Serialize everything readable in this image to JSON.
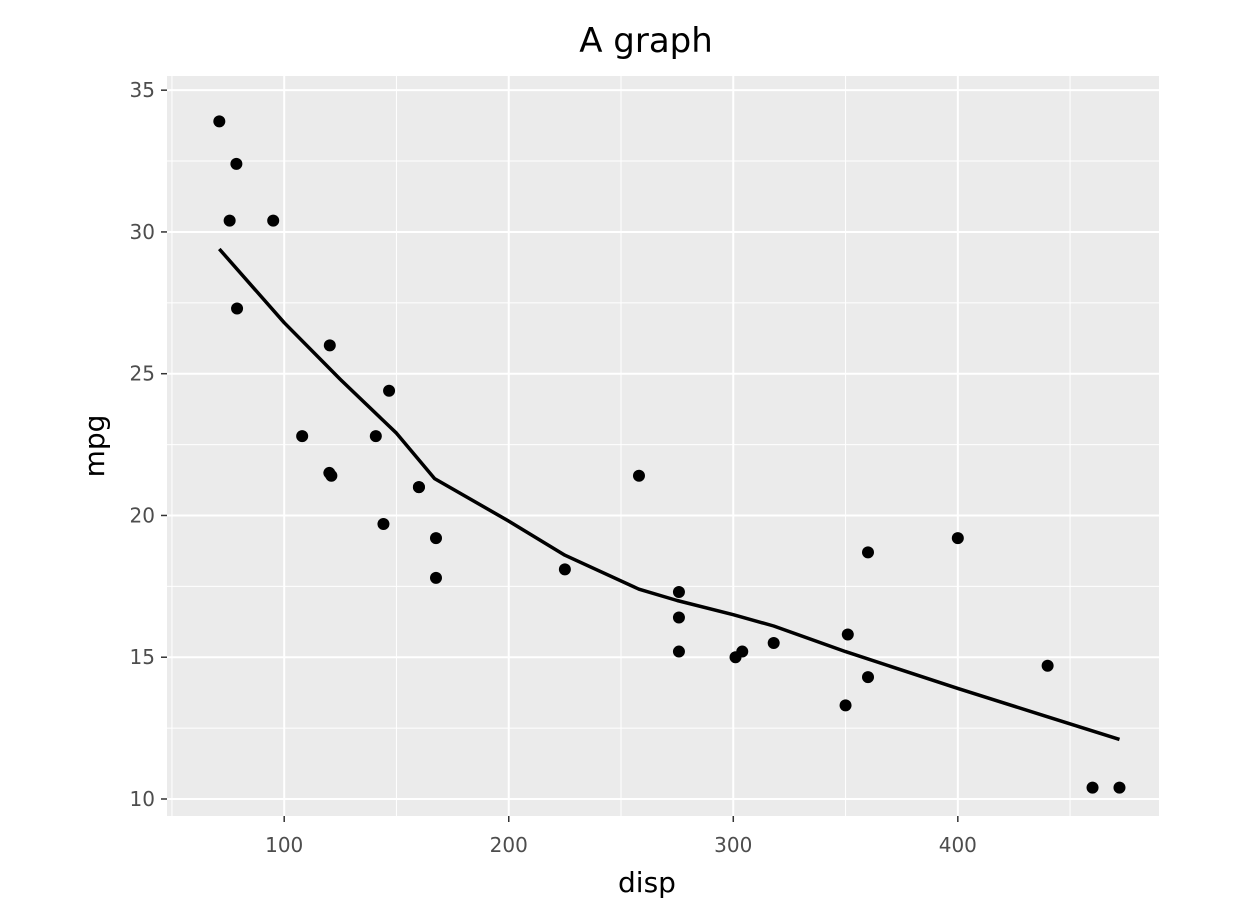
{
  "chart_data": {
    "type": "scatter",
    "title": "A graph",
    "xlabel": "disp",
    "ylabel": "mpg",
    "xlim": [
      47.8,
      489.6
    ],
    "ylim": [
      9.4,
      35.5
    ],
    "xticks": [
      100,
      200,
      300,
      400
    ],
    "yticks": [
      10,
      15,
      20,
      25,
      30,
      35
    ],
    "grid": true,
    "colors": {
      "panel": "#ebebeb",
      "grid": "#ffffff",
      "points": "#000000",
      "line": "#000000",
      "tick_text": "#4d4d4d",
      "text": "#000000"
    },
    "series": [
      {
        "kind": "points",
        "x": [
          71.1,
          78.7,
          75.7,
          79,
          95.1,
          120.3,
          140.8,
          146.7,
          108,
          120.1,
          121,
          144.2,
          160,
          160,
          167.6,
          167.6,
          225,
          258,
          275.8,
          275.8,
          275.8,
          301,
          304,
          318,
          350,
          351,
          360,
          360,
          400,
          440,
          460,
          472
        ],
        "y": [
          33.9,
          32.4,
          30.4,
          27.3,
          30.4,
          26.0,
          22.8,
          24.4,
          22.8,
          21.5,
          21.4,
          19.7,
          21.0,
          21.0,
          19.2,
          17.8,
          18.1,
          21.4,
          17.3,
          16.4,
          15.2,
          15.0,
          15.2,
          15.5,
          13.3,
          15.8,
          18.7,
          14.3,
          19.2,
          14.7,
          10.4,
          10.4
        ]
      },
      {
        "kind": "line",
        "x": [
          71.1,
          100,
          125,
          150,
          167,
          200,
          225,
          258,
          275,
          300,
          318,
          350,
          400,
          440,
          472
        ],
        "y": [
          29.4,
          26.8,
          24.8,
          22.9,
          21.3,
          19.8,
          18.6,
          17.4,
          17.0,
          16.5,
          16.1,
          15.2,
          13.9,
          12.9,
          12.1
        ]
      }
    ]
  }
}
